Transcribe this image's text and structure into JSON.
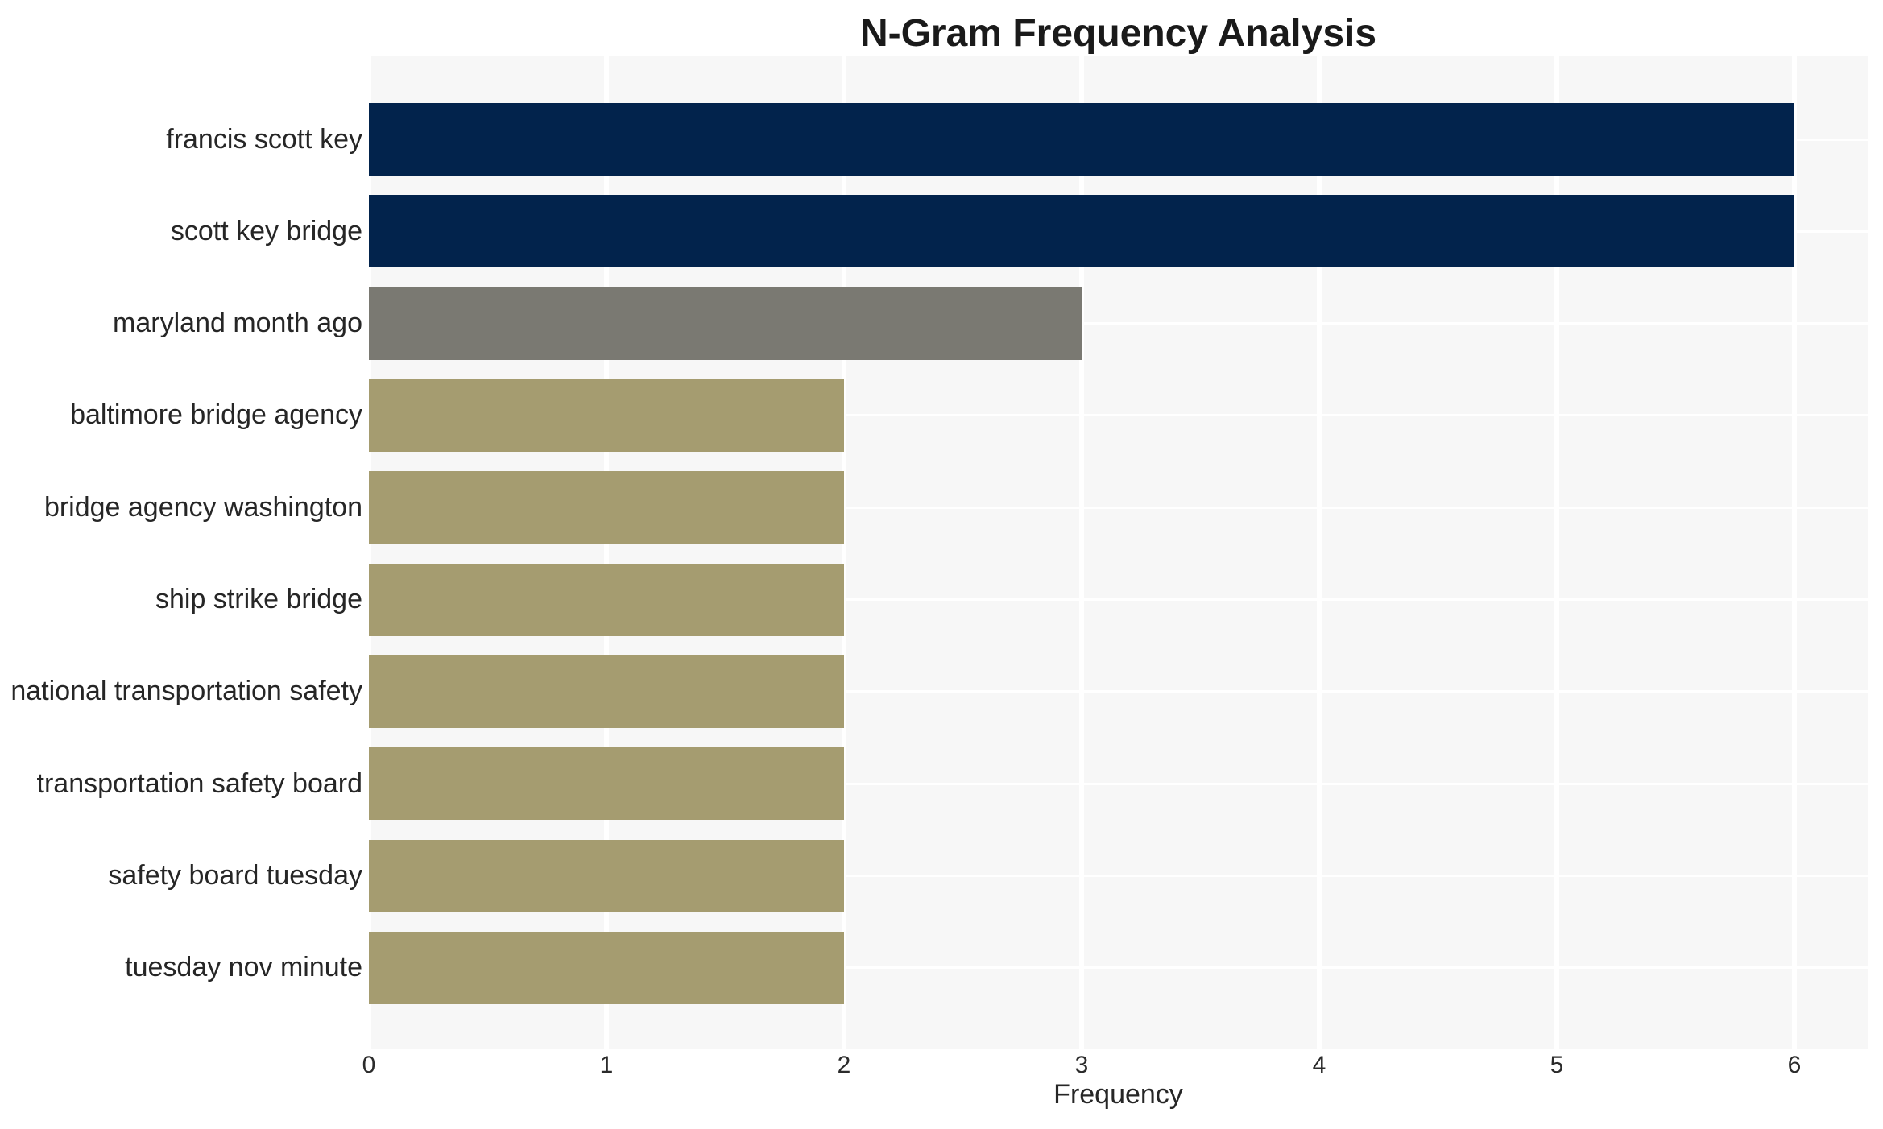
{
  "chart_data": {
    "type": "bar",
    "orientation": "horizontal",
    "title": "N-Gram Frequency Analysis",
    "xlabel": "Frequency",
    "ylabel": "",
    "categories": [
      "francis scott key",
      "scott key bridge",
      "maryland month ago",
      "baltimore bridge agency",
      "bridge agency washington",
      "ship strike bridge",
      "national transportation safety",
      "transportation safety board",
      "safety board tuesday",
      "tuesday nov minute"
    ],
    "values": [
      6,
      6,
      3,
      2,
      2,
      2,
      2,
      2,
      2,
      2
    ],
    "bar_colors": [
      "#02234C",
      "#02234C",
      "#7A7972",
      "#A59C70",
      "#A59C70",
      "#A59C70",
      "#A59C70",
      "#A59C70",
      "#A59C70",
      "#A59C70"
    ],
    "x_ticks": [
      0,
      1,
      2,
      3,
      4,
      5,
      6
    ],
    "xlim": [
      0,
      6.31
    ],
    "grid": true,
    "legend_position": "none",
    "colors": {
      "navy": "#02234C",
      "gray": "#7A7972",
      "khaki": "#A59C70",
      "plot_background": "#F7F7F7",
      "gridline": "#FFFFFF",
      "text": "#262626"
    }
  }
}
